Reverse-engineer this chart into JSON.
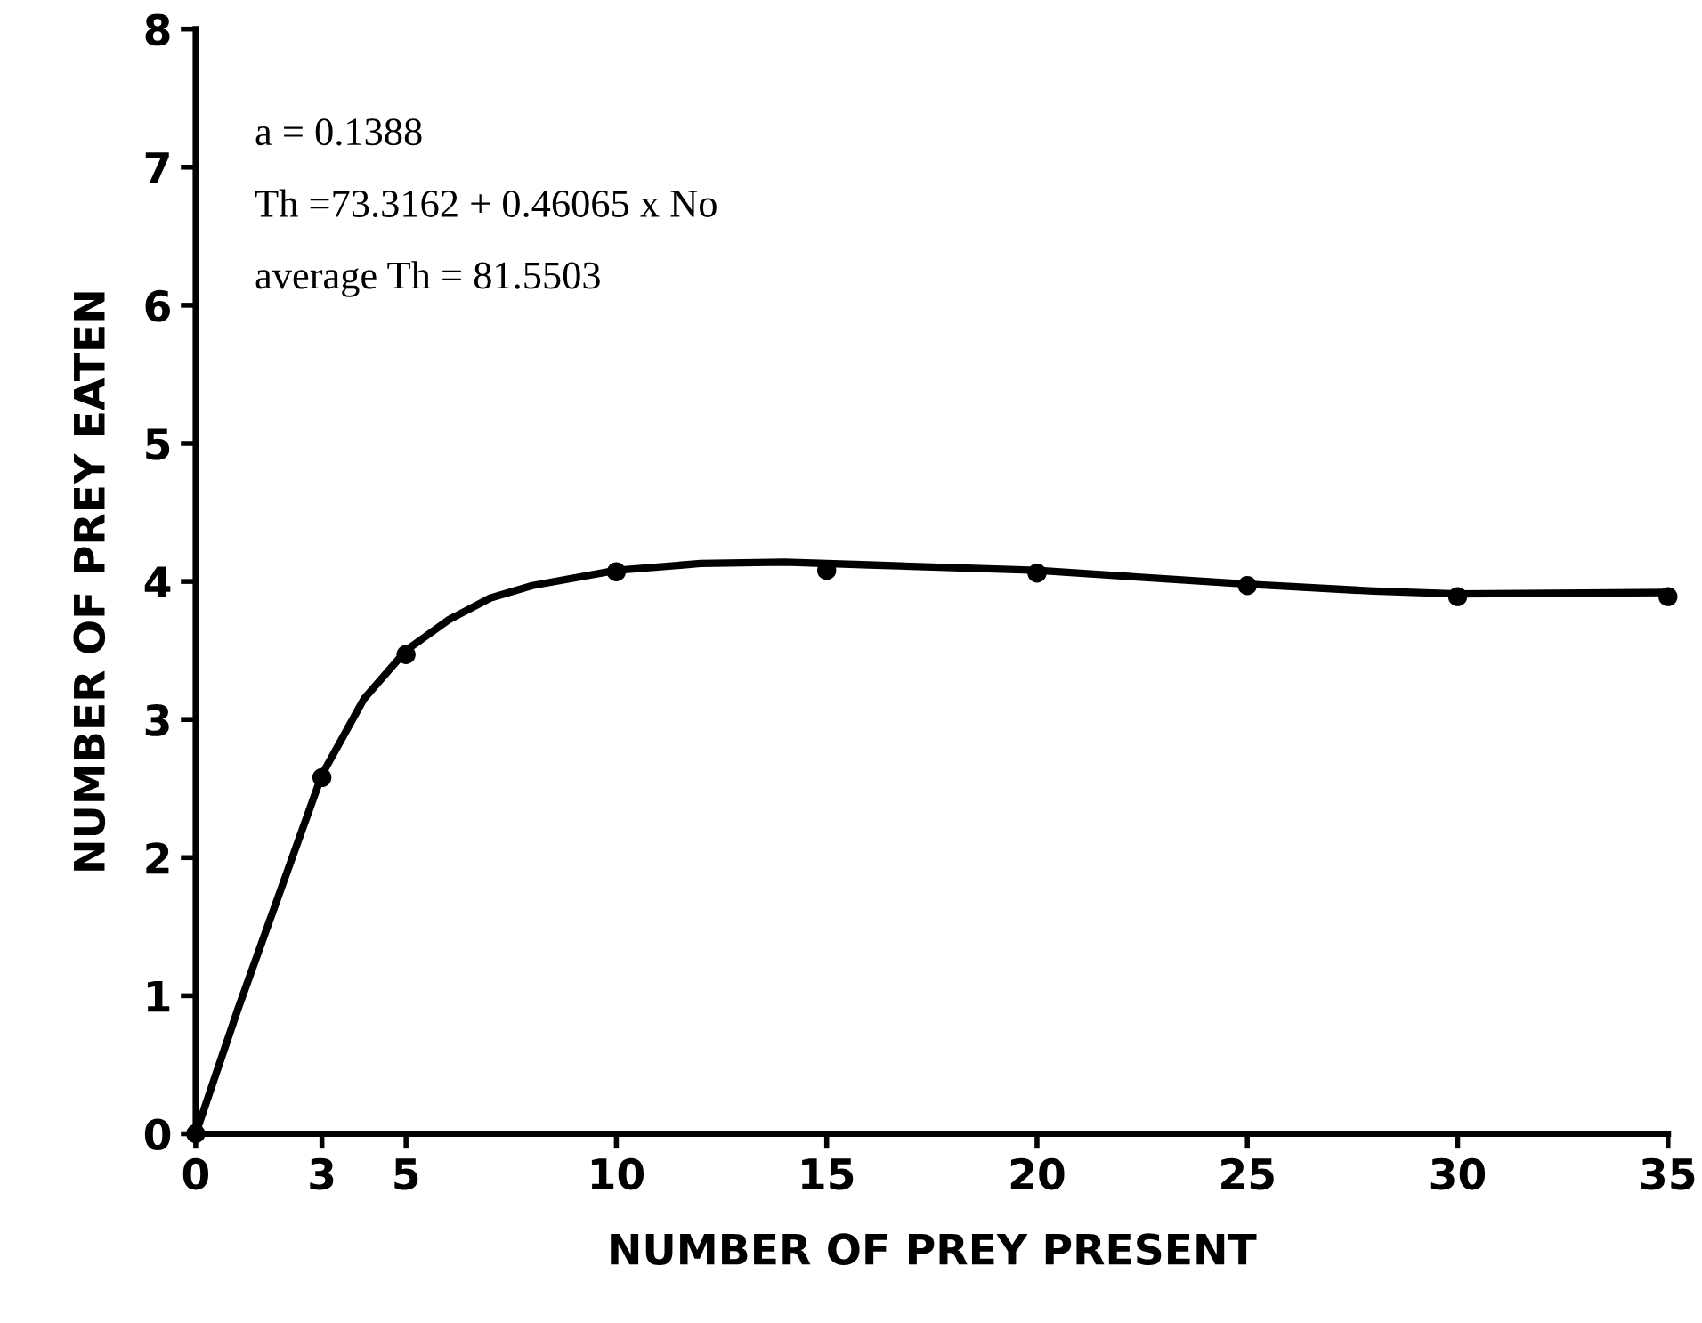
{
  "chart_data": {
    "type": "line",
    "xlabel": "NUMBER OF PREY PRESENT",
    "ylabel": "NUMBER OF PREY EATEN",
    "annotations": [
      "a = 0.1388",
      "Th =73.3162 + 0.46065 x No",
      "average Th = 81.5503"
    ],
    "series": [
      {
        "color": "#000000",
        "line_style": "solid",
        "marker": "none",
        "x": [
          0,
          1,
          2,
          3,
          4,
          5,
          6,
          7,
          8,
          10,
          12,
          14,
          16,
          18,
          20,
          22,
          25,
          28,
          30,
          35
        ],
        "values": [
          0,
          0.9,
          1.75,
          2.6,
          3.15,
          3.5,
          3.72,
          3.88,
          3.97,
          4.08,
          4.13,
          4.14,
          4.12,
          4.1,
          4.08,
          4.04,
          3.98,
          3.93,
          3.91,
          3.92
        ]
      },
      {
        "type": "scatter",
        "color": "#000000",
        "marker": "circle",
        "x": [
          0,
          3,
          5,
          10,
          15,
          20,
          25,
          30,
          35
        ],
        "values": [
          0,
          2.58,
          3.47,
          4.07,
          4.08,
          4.06,
          3.97,
          3.89,
          3.89
        ]
      }
    ],
    "xlim": [
      0,
      35
    ],
    "ylim": [
      0,
      8
    ],
    "xticks": [
      0,
      3,
      5,
      10,
      15,
      20,
      25,
      30,
      35
    ],
    "yticks": [
      0,
      1,
      2,
      3,
      4,
      5,
      6,
      7,
      8
    ],
    "grid": false,
    "legend": false
  }
}
